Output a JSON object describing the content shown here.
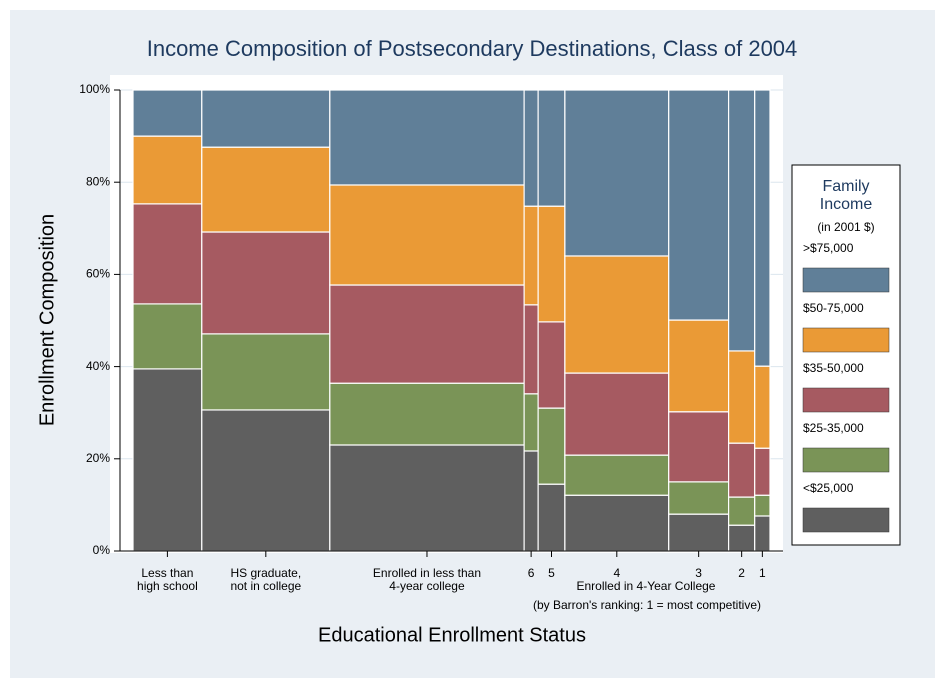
{
  "chart_data": {
    "type": "mosaic",
    "title": "Income Composition of Postsecondary Destinations, Class of 2004",
    "x_label": "Educational Enrollment Status",
    "y_label": "Enrollment Composition",
    "group_label": "Enrolled in 4-Year College",
    "group_note": "(by Barron's ranking: 1 = most competitive)",
    "categories": [
      [
        "Less than",
        "high school"
      ],
      [
        "HS graduate,",
        "not in college"
      ],
      [
        "Enrolled in less than",
        "4-year college"
      ],
      [
        "6"
      ],
      [
        "5"
      ],
      [
        "4"
      ],
      [
        "3"
      ],
      [
        "2"
      ],
      [
        "1"
      ]
    ],
    "widths": [
      10.8,
      20.1,
      30.5,
      2.2,
      4.2,
      16.3,
      9.4,
      4.1,
      2.4
    ],
    "series": [
      {
        "name": "<$25,000",
        "color": "#5f5f5f",
        "values": [
          39.5,
          30.6,
          23.0,
          21.7,
          14.5,
          12.1,
          8.0,
          5.6,
          7.6
        ]
      },
      {
        "name": "$25-35,000",
        "color": "#7a9457",
        "values": [
          14.1,
          16.5,
          13.4,
          12.4,
          16.5,
          8.7,
          7.0,
          6.1,
          4.5
        ]
      },
      {
        "name": "$35-50,000",
        "color": "#a65a61",
        "values": [
          21.7,
          22.1,
          21.3,
          19.3,
          18.7,
          17.8,
          15.2,
          11.7,
          10.2
        ]
      },
      {
        "name": "$50-75,000",
        "color": "#ea9a36",
        "values": [
          14.7,
          18.4,
          21.7,
          21.4,
          25.1,
          25.4,
          19.9,
          20.0,
          17.8
        ]
      },
      {
        "name": ">$75,000",
        "color": "#607f98",
        "values": [
          10.0,
          12.4,
          20.6,
          25.2,
          25.2,
          36.0,
          49.9,
          56.6,
          59.9
        ]
      }
    ],
    "legend_title": [
      "Family",
      "Income"
    ],
    "legend_subtitle": "(in 2001 $)",
    "ylim": [
      0,
      100
    ],
    "yticks": [
      {
        "value": 0,
        "label": "0%"
      },
      {
        "value": 20,
        "label": "20%"
      },
      {
        "value": 40,
        "label": "40%"
      },
      {
        "value": 60,
        "label": "60%"
      },
      {
        "value": 80,
        "label": "80%"
      },
      {
        "value": 100,
        "label": "100%"
      }
    ]
  }
}
